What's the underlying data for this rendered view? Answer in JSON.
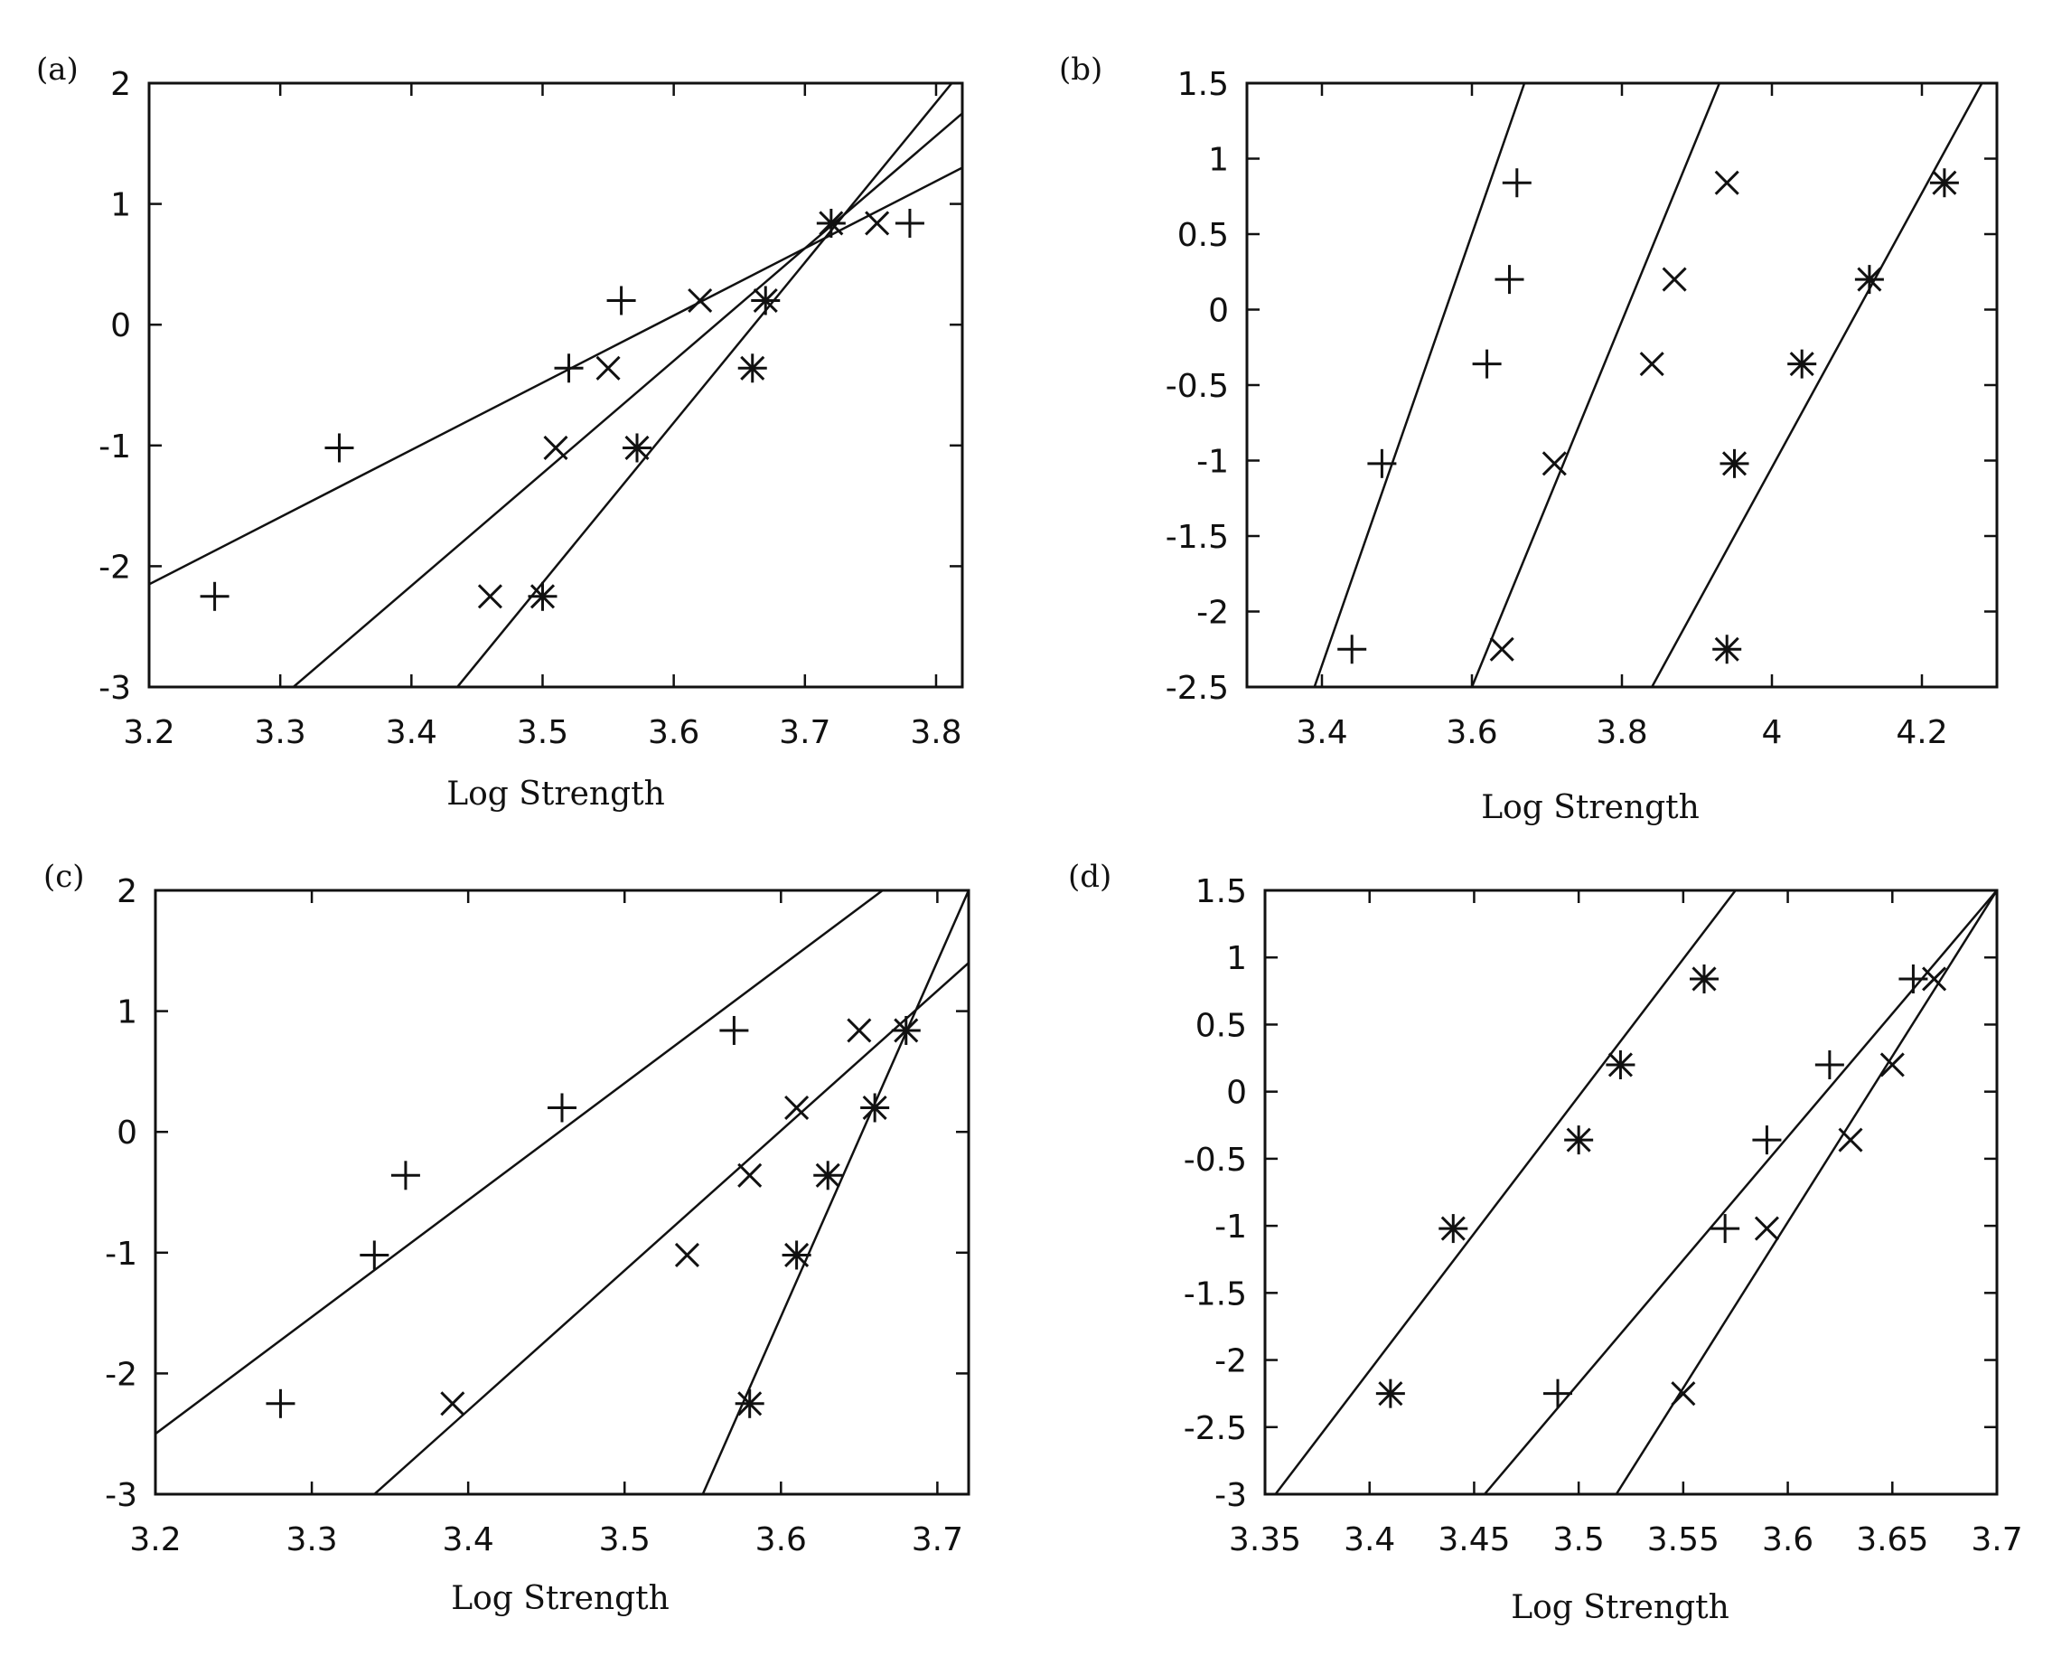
{
  "chart_data": [
    {
      "type": "scatter",
      "panel": "(a)",
      "xlabel": "Log Strength",
      "ylabel": "",
      "xlim": [
        3.2,
        3.82
      ],
      "ylim": [
        -3,
        2
      ],
      "xticks": [
        "3.2",
        "3.3",
        "3.4",
        "3.5",
        "3.6",
        "3.7",
        "3.8"
      ],
      "yticks": [
        "2",
        "1",
        "0",
        "-1",
        "-2",
        "-3"
      ],
      "series": [
        {
          "marker": "plus",
          "points": [
            [
              3.25,
              -2.25
            ],
            [
              3.345,
              -1.02
            ],
            [
              3.52,
              -0.36
            ],
            [
              3.56,
              0.2
            ],
            [
              3.78,
              0.84
            ]
          ],
          "line": [
            [
              3.2,
              -2.15
            ],
            [
              3.82,
              1.3
            ]
          ]
        },
        {
          "marker": "cross",
          "points": [
            [
              3.46,
              -2.25
            ],
            [
              3.51,
              -1.02
            ],
            [
              3.55,
              -0.36
            ],
            [
              3.62,
              0.2
            ],
            [
              3.755,
              0.84
            ]
          ],
          "line": [
            [
              3.31,
              -3
            ],
            [
              3.82,
              1.75
            ]
          ]
        },
        {
          "marker": "asterisk",
          "points": [
            [
              3.5,
              -2.25
            ],
            [
              3.572,
              -1.02
            ],
            [
              3.66,
              -0.36
            ],
            [
              3.67,
              0.2
            ],
            [
              3.72,
              0.84
            ]
          ],
          "line": [
            [
              3.435,
              -3
            ],
            [
              3.812,
              2
            ]
          ]
        }
      ]
    },
    {
      "type": "scatter",
      "panel": "(b)",
      "xlabel": "Log Strength",
      "ylabel": "",
      "xlim": [
        3.3,
        4.3
      ],
      "ylim": [
        -2.5,
        1.5
      ],
      "xticks": [
        "3.4",
        "3.6",
        "3.8",
        "4",
        "4.2"
      ],
      "yticks": [
        "1.5",
        "1",
        "0.5",
        "0",
        "-0.5",
        "-1",
        "-1.5",
        "-2",
        "-2.5"
      ],
      "series": [
        {
          "marker": "plus",
          "points": [
            [
              3.44,
              -2.25
            ],
            [
              3.48,
              -1.02
            ],
            [
              3.62,
              -0.36
            ],
            [
              3.65,
              0.2
            ],
            [
              3.66,
              0.84
            ]
          ],
          "line": [
            [
              3.39,
              -2.5
            ],
            [
              3.67,
              1.5
            ]
          ]
        },
        {
          "marker": "cross",
          "points": [
            [
              3.64,
              -2.25
            ],
            [
              3.71,
              -1.02
            ],
            [
              3.84,
              -0.36
            ],
            [
              3.87,
              0.2
            ],
            [
              3.94,
              0.84
            ]
          ],
          "line": [
            [
              3.6,
              -2.5
            ],
            [
              3.93,
              1.5
            ]
          ]
        },
        {
          "marker": "asterisk",
          "points": [
            [
              3.94,
              -2.25
            ],
            [
              3.95,
              -1.02
            ],
            [
              4.04,
              -0.36
            ],
            [
              4.13,
              0.2
            ],
            [
              4.23,
              0.84
            ]
          ],
          "line": [
            [
              3.84,
              -2.5
            ],
            [
              4.28,
              1.5
            ]
          ]
        }
      ]
    },
    {
      "type": "scatter",
      "panel": "(c)",
      "xlabel": "Log Strength",
      "ylabel": "",
      "xlim": [
        3.2,
        3.72
      ],
      "ylim": [
        -3,
        2
      ],
      "xticks": [
        "3.2",
        "3.3",
        "3.4",
        "3.5",
        "3.6",
        "3.7"
      ],
      "yticks": [
        "2",
        "1",
        "0",
        "-1",
        "-2",
        "-3"
      ],
      "series": [
        {
          "marker": "plus",
          "points": [
            [
              3.28,
              -2.25
            ],
            [
              3.34,
              -1.02
            ],
            [
              3.36,
              -0.36
            ],
            [
              3.46,
              0.2
            ],
            [
              3.57,
              0.84
            ]
          ],
          "line": [
            [
              3.2,
              -2.5
            ],
            [
              3.665,
              2
            ]
          ]
        },
        {
          "marker": "cross",
          "points": [
            [
              3.39,
              -2.25
            ],
            [
              3.54,
              -1.02
            ],
            [
              3.58,
              -0.36
            ],
            [
              3.61,
              0.2
            ],
            [
              3.65,
              0.84
            ]
          ],
          "line": [
            [
              3.34,
              -3
            ],
            [
              3.72,
              1.4
            ]
          ]
        },
        {
          "marker": "asterisk",
          "points": [
            [
              3.58,
              -2.25
            ],
            [
              3.61,
              -1.02
            ],
            [
              3.63,
              -0.36
            ],
            [
              3.66,
              0.2
            ],
            [
              3.68,
              0.84
            ]
          ],
          "line": [
            [
              3.55,
              -3
            ],
            [
              3.72,
              2
            ]
          ]
        }
      ]
    },
    {
      "type": "scatter",
      "panel": "(d)",
      "xlabel": "Log Strength",
      "ylabel": "",
      "xlim": [
        3.35,
        3.7
      ],
      "ylim": [
        -3,
        1.5
      ],
      "xticks": [
        "3.35",
        "3.4",
        "3.45",
        "3.5",
        "3.55",
        "3.6",
        "3.65",
        "3.7"
      ],
      "yticks": [
        "1.5",
        "1",
        "0.5",
        "0",
        "-0.5",
        "-1",
        "-1.5",
        "-2",
        "-2.5",
        "-3"
      ],
      "series": [
        {
          "marker": "plus",
          "points": [
            [
              3.49,
              -2.25
            ],
            [
              3.57,
              -1.02
            ],
            [
              3.59,
              -0.36
            ],
            [
              3.62,
              0.2
            ],
            [
              3.66,
              0.84
            ]
          ],
          "line": [
            [
              3.455,
              -3
            ],
            [
              3.7,
              1.5
            ]
          ]
        },
        {
          "marker": "cross",
          "points": [
            [
              3.55,
              -2.25
            ],
            [
              3.59,
              -1.02
            ],
            [
              3.63,
              -0.36
            ],
            [
              3.65,
              0.2
            ],
            [
              3.67,
              0.84
            ]
          ],
          "line": [
            [
              3.518,
              -3
            ],
            [
              3.7,
              1.5
            ]
          ]
        },
        {
          "marker": "asterisk",
          "points": [
            [
              3.41,
              -2.25
            ],
            [
              3.44,
              -1.02
            ],
            [
              3.5,
              -0.36
            ],
            [
              3.52,
              0.2
            ],
            [
              3.56,
              0.84
            ]
          ],
          "line": [
            [
              3.355,
              -3
            ],
            [
              3.575,
              1.5
            ]
          ]
        }
      ]
    }
  ]
}
